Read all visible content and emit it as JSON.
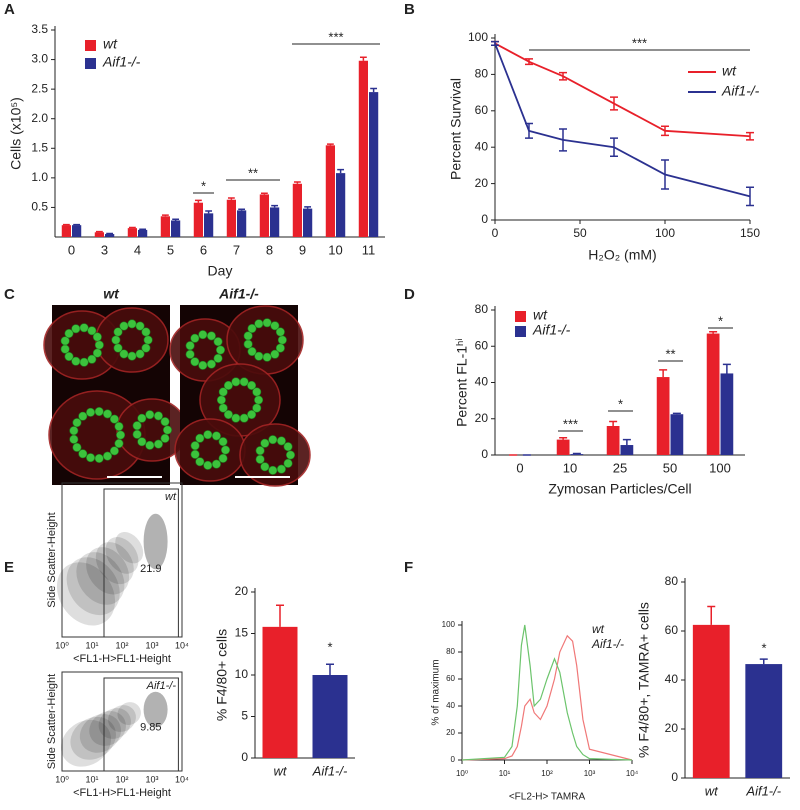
{
  "panel_labels": [
    "A",
    "B",
    "C",
    "D",
    "E",
    "F"
  ],
  "micrographs": {
    "labels": [
      "wt",
      "Aif1-/-"
    ]
  },
  "flow_plots": [
    {
      "label": "wt",
      "gate_value": "21.9",
      "x_label": "<FL1-H>FL1-Height",
      "y_label": "Side Scatter-Height",
      "xticks": [
        "10⁰",
        "10¹",
        "10²",
        "10³",
        "10⁴"
      ]
    },
    {
      "label": "Aif1-/-",
      "gate_value": "9.85",
      "x_label": "<FL1-H>FL1-Height",
      "y_label": "Side Scatter-Height",
      "xticks": [
        "10⁰",
        "10¹",
        "10²",
        "10³",
        "10⁴"
      ]
    }
  ],
  "chart_data": [
    {
      "type": "bar",
      "x_label": "Day",
      "y_label": "Cells (x10⁵)",
      "categories": [
        "0",
        "3",
        "4",
        "5",
        "6",
        "7",
        "8",
        "9",
        "10",
        "11"
      ],
      "series": [
        {
          "name": "wt",
          "color": "#e8202a",
          "values": [
            0.2,
            0.08,
            0.15,
            0.35,
            0.58,
            0.63,
            0.72,
            0.9,
            1.55,
            2.98
          ],
          "errors": [
            0.01,
            0.01,
            0.01,
            0.02,
            0.04,
            0.03,
            0.02,
            0.03,
            0.02,
            0.06
          ]
        },
        {
          "name": "Aif1-/-",
          "color": "#2b3190",
          "values": [
            0.2,
            0.05,
            0.12,
            0.28,
            0.4,
            0.45,
            0.5,
            0.48,
            1.08,
            2.45
          ],
          "errors": [
            0.01,
            0.01,
            0.01,
            0.02,
            0.04,
            0.02,
            0.03,
            0.03,
            0.06,
            0.06
          ]
        }
      ],
      "ylim": [
        0,
        3.5
      ],
      "yticks": [
        0.5,
        {
          "value": 1,
          "label": "1.0"
        },
        1.5,
        {
          "value": 2,
          "label": "2.0"
        },
        2.5,
        {
          "value": 3,
          "label": "3.0"
        },
        3.5
      ],
      "annotations": [
        "*",
        "**",
        "***"
      ]
    },
    {
      "type": "line",
      "x_label": "H₂O₂ (mM)",
      "y_label": "Percent Survival",
      "x": [
        0,
        20,
        40,
        70,
        100,
        150
      ],
      "series": [
        {
          "name": "wt",
          "color": "#e8202a",
          "values": [
            97,
            87,
            79,
            64,
            49,
            46
          ],
          "errors": [
            1,
            1.5,
            2,
            3.5,
            2.5,
            2
          ]
        },
        {
          "name": "Aif1-/-",
          "color": "#2b3190",
          "values": [
            97,
            49,
            44,
            40,
            25,
            13
          ],
          "errors": [
            1,
            4,
            6,
            5,
            8,
            5
          ]
        }
      ],
      "xlim": [
        0,
        150
      ],
      "xticks": [
        0,
        50,
        100,
        150
      ],
      "ylim": [
        0,
        100
      ],
      "yticks": [
        0,
        20,
        40,
        60,
        80,
        100
      ],
      "annotations": [
        "***"
      ]
    },
    {
      "type": "bar",
      "x_label": "Zymosan Particles/Cell",
      "y_label": "Percent FL-1ʰⁱ",
      "categories": [
        "0",
        "10",
        "25",
        "50",
        "100"
      ],
      "series": [
        {
          "name": "wt",
          "color": "#e8202a",
          "values": [
            0,
            8.5,
            16,
            43,
            67
          ],
          "errors": [
            0,
            1,
            2.5,
            4,
            1
          ]
        },
        {
          "name": "Aif1-/-",
          "color": "#2b3190",
          "values": [
            0,
            0.5,
            5.5,
            22.5,
            45
          ],
          "errors": [
            0,
            0.3,
            3,
            0.5,
            5
          ]
        }
      ],
      "ylim": [
        0,
        80
      ],
      "yticks": [
        0,
        20,
        40,
        60,
        80
      ],
      "annotations": [
        "***",
        "*",
        "**",
        "*"
      ]
    },
    {
      "type": "bar",
      "y_label": "% F4/80+ cells",
      "categories": [
        "wt",
        "Aif1-/-"
      ],
      "colors": [
        "#e8202a",
        "#2b3190"
      ],
      "series": [
        {
          "values": [
            15.8,
            10.0
          ],
          "errors": [
            2.6,
            1.3
          ]
        }
      ],
      "ylim": [
        0,
        20
      ],
      "yticks": [
        0,
        5,
        10,
        15,
        20
      ],
      "annotations": [
        "*"
      ]
    },
    {
      "type": "line",
      "x_label": "<FL2-H> TAMRA",
      "y_label": "% of maximum",
      "xlog": true,
      "x": [
        1,
        10,
        15,
        20,
        25,
        30,
        40,
        50,
        70,
        100,
        150,
        200,
        300,
        400,
        500,
        700,
        1000,
        10000
      ],
      "series": [
        {
          "name": "wt",
          "color": "#f07878",
          "values": [
            0,
            1,
            3,
            10,
            25,
            40,
            45,
            35,
            30,
            40,
            60,
            80,
            92,
            88,
            70,
            30,
            8,
            0
          ]
        },
        {
          "name": "Aif1-/-",
          "color": "#6cc46c",
          "values": [
            0,
            2,
            10,
            40,
            85,
            100,
            70,
            40,
            45,
            60,
            75,
            65,
            35,
            20,
            10,
            4,
            1,
            0
          ]
        }
      ],
      "xlim": [
        1,
        10000
      ],
      "xticks": [
        {
          "value": 1,
          "label": "10⁰"
        },
        {
          "value": 10,
          "label": "10¹"
        },
        {
          "value": 100,
          "label": "10²"
        },
        {
          "value": 1000,
          "label": "10³"
        },
        {
          "value": 10000,
          "label": "10⁴"
        }
      ],
      "ylim": [
        0,
        100
      ],
      "yticks": [
        0,
        20,
        40,
        60,
        80,
        100
      ]
    },
    {
      "type": "bar",
      "y_label": "% F4/80+, TAMRA+ cells",
      "categories": [
        "wt",
        "Aif1-/-"
      ],
      "colors": [
        "#e8202a",
        "#2b3190"
      ],
      "series": [
        {
          "values": [
            62.5,
            46.5
          ],
          "errors": [
            7.5,
            2
          ]
        }
      ],
      "ylim": [
        0,
        80
      ],
      "yticks": [
        0,
        20,
        40,
        60,
        80
      ],
      "annotations": [
        "*"
      ]
    }
  ]
}
